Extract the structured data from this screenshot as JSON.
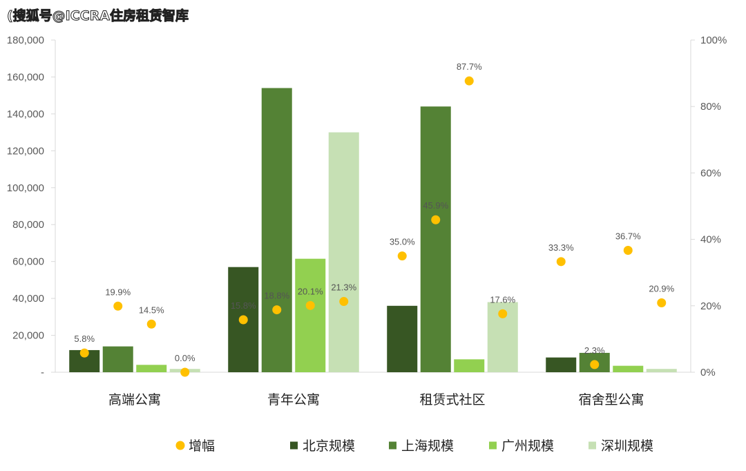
{
  "watermark": "(搜狐号@ICCRA住房租赁智库",
  "chart_data": {
    "type": "bar",
    "categories": [
      "高端公寓",
      "青年公寓",
      "租赁式社区",
      "宿舍型公寓"
    ],
    "series": [
      {
        "name": "北京规模",
        "color": "#375623",
        "values": [
          12000,
          57000,
          36000,
          8000
        ]
      },
      {
        "name": "上海规模",
        "color": "#548235",
        "values": [
          14000,
          154000,
          144000,
          10500
        ]
      },
      {
        "name": "广州规模",
        "color": "#92d050",
        "values": [
          4000,
          61500,
          7000,
          3500
        ]
      },
      {
        "name": "深圳规模",
        "color": "#c6e0b4",
        "values": [
          1800,
          130000,
          38000,
          1800
        ]
      }
    ],
    "growth": {
      "name": "增幅",
      "color": "#ffc000",
      "values": [
        [
          5.8,
          19.9,
          14.5,
          0.0
        ],
        [
          15.8,
          18.8,
          20.1,
          21.3
        ],
        [
          35.0,
          45.9,
          87.7,
          17.6
        ],
        [
          33.3,
          2.3,
          36.7,
          20.9
        ]
      ],
      "labels": [
        [
          "5.8%",
          "19.9%",
          "14.5%",
          "0.0%"
        ],
        [
          "15.8%",
          "18.8%",
          "20.1%",
          "21.3%"
        ],
        [
          "35.0%",
          "45.9%",
          "87.7%",
          "17.6%"
        ],
        [
          "33.3%",
          "2.3%",
          "36.7%",
          "20.9%"
        ]
      ]
    },
    "y_left": {
      "ylim": [
        0,
        180000
      ],
      "ticks": [
        "-",
        "20,000",
        "40,000",
        "60,000",
        "80,000",
        "100,000",
        "120,000",
        "140,000",
        "160,000",
        "180,000"
      ]
    },
    "y_right": {
      "ylim": [
        0,
        100
      ],
      "ticks": [
        "0%",
        "20%",
        "40%",
        "60%",
        "80%",
        "100%"
      ]
    },
    "legend": [
      "增幅",
      "北京规模",
      "上海规模",
      "广州规模",
      "深圳规模"
    ],
    "legend_position": "bottom"
  }
}
